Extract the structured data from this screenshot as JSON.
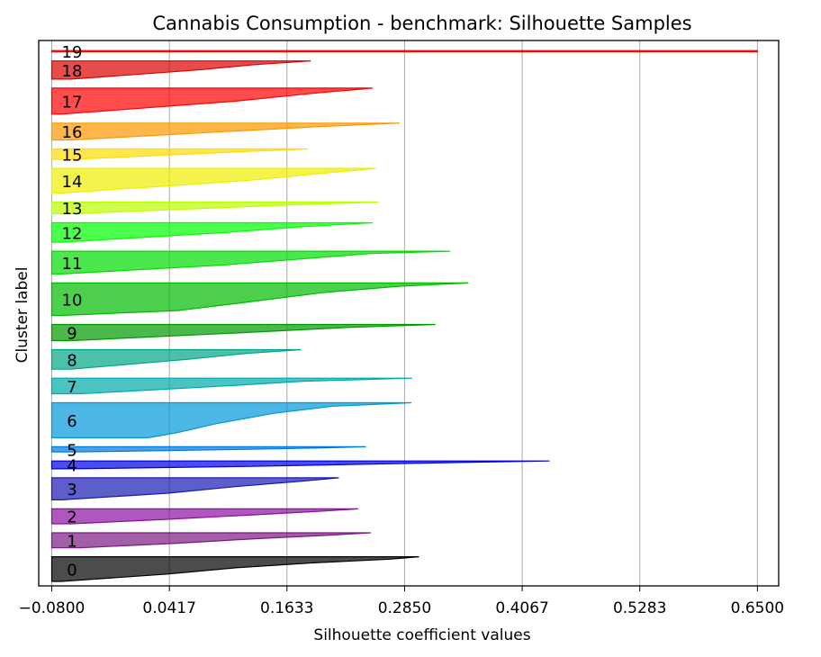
{
  "chart_data": {
    "type": "silhouette",
    "title": "Cannabis Consumption - benchmark: Silhouette Samples",
    "xlabel": "Silhouette coefficient values",
    "ylabel": "Cluster label",
    "xlim": [
      -0.0935,
      0.672
    ],
    "xticks": [
      {
        "value": -0.08,
        "label": "−0.0800"
      },
      {
        "value": 0.0417,
        "label": "0.0417"
      },
      {
        "value": 0.1633,
        "label": "0.1633"
      },
      {
        "value": 0.285,
        "label": "0.2850"
      },
      {
        "value": 0.4067,
        "label": "0.4067"
      },
      {
        "value": 0.5283,
        "label": "0.5283"
      },
      {
        "value": 0.65,
        "label": "0.6500"
      }
    ],
    "grid": "x",
    "clusters": [
      {
        "label": "0",
        "size": 38,
        "max": 0.3,
        "color": "#000000",
        "profile": [
          [
            0,
            0.3
          ],
          [
            0.1,
            0.27
          ],
          [
            0.25,
            0.19
          ],
          [
            0.45,
            0.11
          ],
          [
            0.7,
            0.04
          ],
          [
            1,
            -0.07
          ]
        ]
      },
      {
        "label": "1",
        "size": 23,
        "max": 0.25,
        "color": "#7b1a80",
        "profile": [
          [
            0,
            0.25
          ],
          [
            0.15,
            0.21
          ],
          [
            0.4,
            0.13
          ],
          [
            0.7,
            0.05
          ],
          [
            1,
            -0.05
          ]
        ]
      },
      {
        "label": "2",
        "size": 23,
        "max": 0.237,
        "color": "#8b10a0",
        "profile": [
          [
            0,
            0.237
          ],
          [
            0.15,
            0.2
          ],
          [
            0.4,
            0.13
          ],
          [
            0.7,
            0.04
          ],
          [
            1,
            -0.06
          ]
        ]
      },
      {
        "label": "3",
        "size": 34,
        "max": 0.217,
        "color": "#1a19b3",
        "profile": [
          [
            0,
            0.217
          ],
          [
            0.15,
            0.18
          ],
          [
            0.4,
            0.11
          ],
          [
            0.7,
            0.04
          ],
          [
            1,
            -0.07
          ]
        ]
      },
      {
        "label": "4",
        "size": 12,
        "max": 0.435,
        "color": "#0000dd",
        "profile": [
          [
            0,
            0.435
          ],
          [
            0.15,
            0.36
          ],
          [
            0.4,
            0.25
          ],
          [
            0.7,
            0.12
          ],
          [
            1,
            -0.06
          ]
        ]
      },
      {
        "label": "5",
        "size": 8,
        "max": 0.245,
        "color": "#0077dd",
        "profile": [
          [
            0,
            0.245
          ],
          [
            0.2,
            0.2
          ],
          [
            0.5,
            0.12
          ],
          [
            1,
            -0.06
          ]
        ]
      },
      {
        "label": "6",
        "size": 54,
        "max": 0.292,
        "color": "#0099d8",
        "profile": [
          [
            0,
            0.292
          ],
          [
            0.1,
            0.21
          ],
          [
            0.3,
            0.15
          ],
          [
            0.6,
            0.09
          ],
          [
            0.85,
            0.05
          ],
          [
            1,
            0.02
          ]
        ]
      },
      {
        "label": "7",
        "size": 24,
        "max": 0.293,
        "color": "#00aaaa",
        "profile": [
          [
            0,
            0.293
          ],
          [
            0.2,
            0.18
          ],
          [
            0.5,
            0.1
          ],
          [
            1,
            -0.05
          ]
        ]
      },
      {
        "label": "8",
        "size": 30,
        "max": 0.178,
        "color": "#00a588",
        "profile": [
          [
            0,
            0.178
          ],
          [
            0.2,
            0.12
          ],
          [
            0.5,
            0.06
          ],
          [
            1,
            -0.06
          ]
        ]
      },
      {
        "label": "9",
        "size": 25,
        "max": 0.317,
        "color": "#009900",
        "profile": [
          [
            0,
            0.317
          ],
          [
            0.2,
            0.22
          ],
          [
            0.5,
            0.12
          ],
          [
            1,
            -0.06
          ]
        ]
      },
      {
        "label": "10",
        "size": 50,
        "max": 0.351,
        "color": "#00bb00",
        "profile": [
          [
            0,
            0.351
          ],
          [
            0.1,
            0.28
          ],
          [
            0.3,
            0.2
          ],
          [
            0.6,
            0.12
          ],
          [
            0.85,
            0.05
          ],
          [
            1,
            -0.07
          ]
        ]
      },
      {
        "label": "11",
        "size": 35,
        "max": 0.332,
        "color": "#00dd00",
        "profile": [
          [
            0,
            0.332
          ],
          [
            0.1,
            0.25
          ],
          [
            0.3,
            0.19
          ],
          [
            0.6,
            0.1
          ],
          [
            1,
            -0.07
          ]
        ]
      },
      {
        "label": "12",
        "size": 30,
        "max": 0.252,
        "color": "#00ff00",
        "profile": [
          [
            0,
            0.252
          ],
          [
            0.2,
            0.18
          ],
          [
            0.5,
            0.1
          ],
          [
            1,
            -0.07
          ]
        ]
      },
      {
        "label": "13",
        "size": 18,
        "max": 0.258,
        "color": "#bbff00",
        "profile": [
          [
            0,
            0.258
          ],
          [
            0.2,
            0.18
          ],
          [
            0.5,
            0.09
          ],
          [
            1,
            -0.06
          ]
        ]
      },
      {
        "label": "14",
        "size": 38,
        "max": 0.255,
        "color": "#eeee00",
        "profile": [
          [
            0,
            0.255
          ],
          [
            0.2,
            0.2
          ],
          [
            0.5,
            0.12
          ],
          [
            1,
            -0.07
          ]
        ]
      },
      {
        "label": "15",
        "size": 16,
        "max": 0.185,
        "color": "#ffdd00",
        "profile": [
          [
            0,
            0.185
          ],
          [
            0.2,
            0.13
          ],
          [
            0.5,
            0.06
          ],
          [
            1,
            -0.06
          ]
        ]
      },
      {
        "label": "16",
        "size": 26,
        "max": 0.28,
        "color": "#ff9900",
        "profile": [
          [
            0,
            0.28
          ],
          [
            0.2,
            0.2
          ],
          [
            0.5,
            0.1
          ],
          [
            1,
            -0.06
          ]
        ]
      },
      {
        "label": "17",
        "size": 40,
        "max": 0.252,
        "color": "#ff0000",
        "profile": [
          [
            0,
            0.252
          ],
          [
            0.2,
            0.19
          ],
          [
            0.5,
            0.11
          ],
          [
            1,
            -0.07
          ]
        ]
      },
      {
        "label": "18",
        "size": 28,
        "max": 0.188,
        "color": "#dd0000",
        "profile": [
          [
            0,
            0.188
          ],
          [
            0.2,
            0.13
          ],
          [
            0.5,
            0.07
          ],
          [
            1,
            -0.06
          ]
        ]
      },
      {
        "label": "19",
        "size": 1,
        "max": 0.65,
        "color": "#ee0000",
        "profile": [
          [
            0,
            0.65
          ],
          [
            1,
            0.65
          ]
        ]
      }
    ]
  }
}
